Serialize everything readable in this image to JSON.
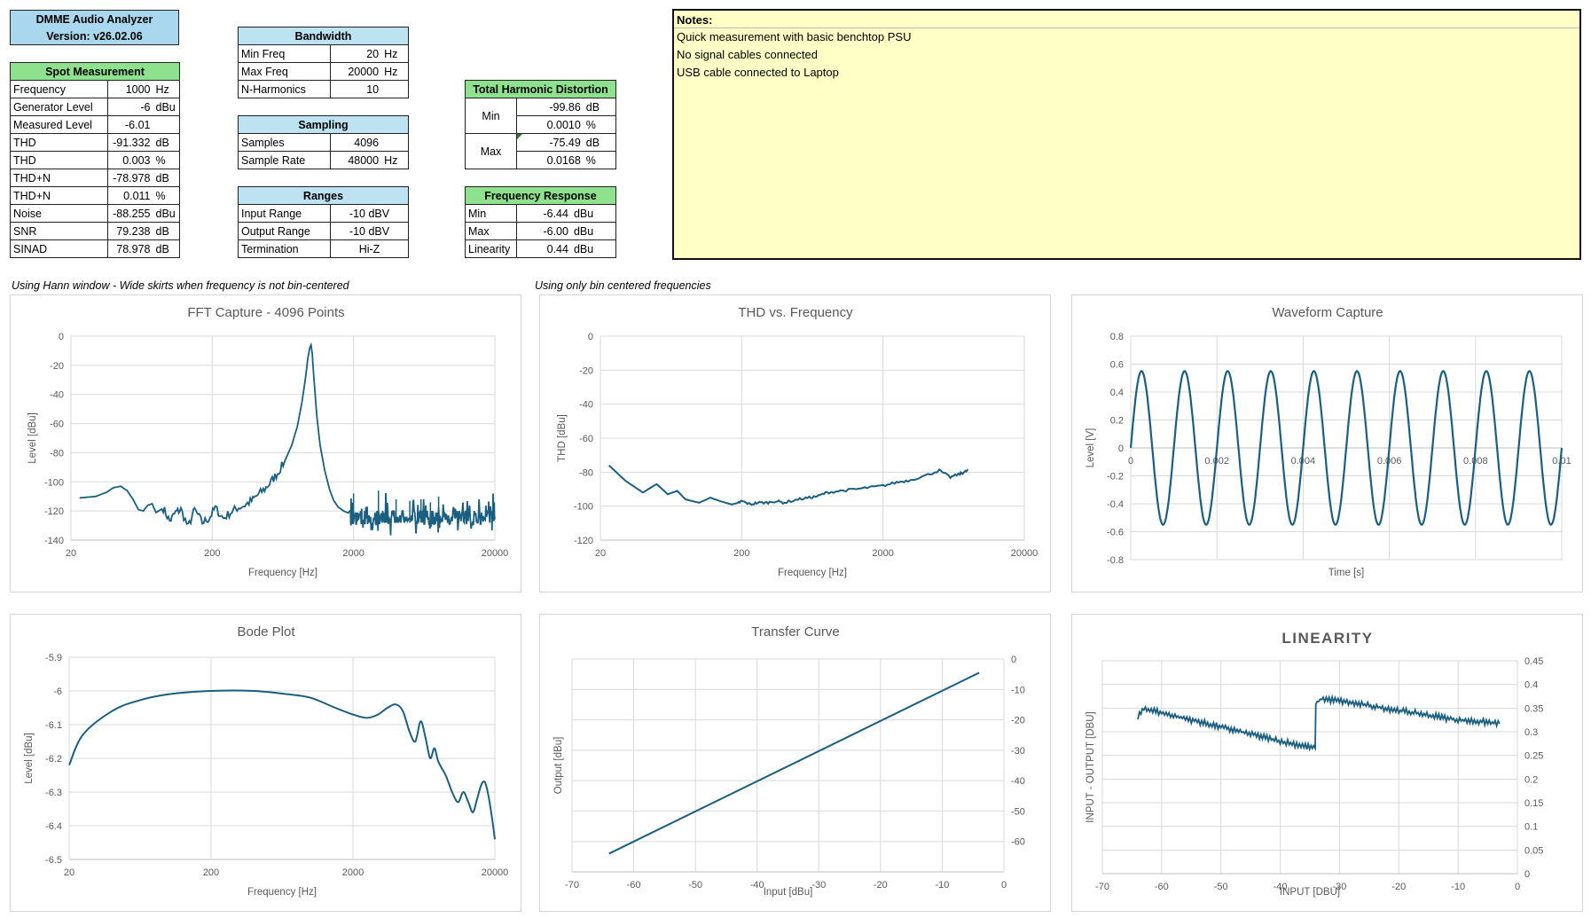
{
  "header": {
    "line1": "DMME Audio Analyzer",
    "line2": "Version: v26.02.06"
  },
  "spot": {
    "title": "Spot Measurement",
    "rows": [
      {
        "label": "Frequency",
        "value": "1000",
        "unit": "Hz"
      },
      {
        "label": "Generator Level",
        "value": "-6",
        "unit": "dBu"
      },
      {
        "label": "Measured Level",
        "value": "-6.01",
        "unit": ""
      },
      {
        "label": "THD",
        "value": "-91.332",
        "unit": "dB"
      },
      {
        "label": "THD",
        "value": "0.003",
        "unit": "%"
      },
      {
        "label": "THD+N",
        "value": "-78.978",
        "unit": "dB"
      },
      {
        "label": "THD+N",
        "value": "0.011",
        "unit": "%"
      },
      {
        "label": "Noise",
        "value": "-88.255",
        "unit": "dBu"
      },
      {
        "label": "SNR",
        "value": "79.238",
        "unit": "dB"
      },
      {
        "label": "SINAD",
        "value": "78.978",
        "unit": "dB"
      }
    ]
  },
  "bandwidth": {
    "title": "Bandwidth",
    "rows": [
      {
        "label": "Min Freq",
        "value": "20",
        "unit": "Hz"
      },
      {
        "label": "Max Freq",
        "value": "20000",
        "unit": "Hz"
      },
      {
        "label": "N-Harmonics",
        "value": "10",
        "unit": ""
      }
    ]
  },
  "sampling": {
    "title": "Sampling",
    "rows": [
      {
        "label": "Samples",
        "value": "4096",
        "unit": ""
      },
      {
        "label": "Sample Rate",
        "value": "48000",
        "unit": "Hz"
      }
    ]
  },
  "ranges": {
    "title": "Ranges",
    "rows": [
      {
        "label": "Input Range",
        "value": "-10 dBV"
      },
      {
        "label": "Output Range",
        "value": "-10 dBV"
      },
      {
        "label": "Termination",
        "value": "Hi-Z"
      }
    ]
  },
  "thd_table": {
    "title": "Total Harmonic Distortion",
    "min_label": "Min",
    "max_label": "Max",
    "min_db": "-99.86",
    "min_db_unit": "dB",
    "min_pct": "0.0010",
    "min_pct_unit": "%",
    "max_db": "-75.49",
    "max_db_unit": "dB",
    "max_pct": "0.0168",
    "max_pct_unit": "%"
  },
  "freq_resp": {
    "title": "Frequency Response",
    "rows": [
      {
        "label": "Min",
        "value": "-6.44",
        "unit": "dBu"
      },
      {
        "label": "Max",
        "value": "-6.00",
        "unit": "dBu"
      },
      {
        "label": "Linearity",
        "value": "0.44",
        "unit": "dBu"
      }
    ]
  },
  "notes": {
    "title": "Notes:",
    "lines": [
      "Quick measurement with basic benchtop PSU",
      "No signal cables connected",
      "USB cable connected to Laptop"
    ]
  },
  "captions": {
    "left": "Using Hann window - Wide skirts when frequency is not bin-centered",
    "mid": "Using only bin centered frequencies"
  },
  "colors": {
    "line": "#1a5f80",
    "grid": "#d9d9d9",
    "axis": "#595959"
  },
  "chart_data": [
    {
      "id": "fft",
      "type": "line",
      "title": "FFT Capture - 4096 Points",
      "xlabel": "Frequency [Hz]",
      "ylabel": "Level [dBu]",
      "xscale": "log",
      "xlim": [
        20,
        20000
      ],
      "ylim": [
        -140,
        0
      ],
      "xticks": [
        "20",
        "200",
        "2000",
        "20000"
      ],
      "yticks": [
        "0",
        "-20",
        "-40",
        "-60",
        "-80",
        "-100",
        "-120",
        "-140"
      ],
      "series": [
        {
          "name": "FFT",
          "x": [
            23,
            30,
            36,
            40,
            45,
            50,
            55,
            60,
            65,
            70,
            75,
            80,
            90,
            100,
            110,
            120,
            135,
            150,
            170,
            190,
            210,
            240,
            270,
            300,
            340,
            380,
            420,
            470,
            520,
            580,
            650,
            730,
            800,
            860,
            910,
            950,
            980,
            1000,
            1020,
            1050,
            1100,
            1160,
            1250,
            1350,
            1450,
            1550,
            1700,
            1900,
            2000,
            2300,
            2600,
            3000,
            3500,
            4000,
            5000,
            6000,
            7000,
            8000,
            10000,
            12000,
            15000,
            18000,
            20000
          ],
          "y": [
            -111,
            -110,
            -107,
            -104,
            -103,
            -106,
            -112,
            -119,
            -120,
            -116,
            -115,
            -121,
            -118,
            -127,
            -121,
            -119,
            -131,
            -119,
            -128,
            -125,
            -118,
            -125,
            -121,
            -118,
            -116,
            -113,
            -109,
            -105,
            -100,
            -94,
            -86,
            -75,
            -62,
            -46,
            -30,
            -15,
            -8,
            -6,
            -12,
            -30,
            -55,
            -75,
            -92,
            -105,
            -113,
            -117,
            -120,
            -122,
            -108,
            -128,
            -123,
            -121,
            -124,
            -120,
            -126,
            -122,
            -125,
            -121,
            -127,
            -122,
            -125,
            -121,
            -124
          ]
        }
      ]
    },
    {
      "id": "thd",
      "type": "line",
      "title": "THD vs. Frequency",
      "xlabel": "Frequency [Hz]",
      "ylabel": "THD [dBu]",
      "xscale": "log",
      "xlim": [
        20,
        20000
      ],
      "ylim": [
        -120,
        0
      ],
      "xticks": [
        "20",
        "200",
        "2000",
        "20000"
      ],
      "yticks": [
        "0",
        "-20",
        "-40",
        "-60",
        "-80",
        "-100",
        "-120"
      ],
      "series": [
        {
          "name": "THD",
          "x": [
            23,
            30,
            40,
            50,
            60,
            70,
            80,
            100,
            120,
            140,
            170,
            190,
            200,
            230,
            260,
            300,
            350,
            400,
            500,
            600,
            700,
            800,
            1000,
            1300,
            1600,
            2000,
            2500,
            3000,
            4000,
            5000,
            6000,
            7000,
            7500,
            8000
          ],
          "y": [
            -76,
            -85,
            -92,
            -87,
            -93,
            -91,
            -96,
            -98,
            -95,
            -97,
            -99,
            -98,
            -97,
            -99,
            -98,
            -98,
            -97,
            -98,
            -96,
            -95,
            -94,
            -92,
            -91,
            -90,
            -89,
            -88,
            -86,
            -85,
            -82,
            -79,
            -83,
            -81,
            -80,
            -79
          ]
        }
      ]
    },
    {
      "id": "wave",
      "type": "line",
      "title": "Waveform Capture",
      "xlabel": "Time [s]",
      "ylabel": "Level [V]",
      "xlim": [
        0,
        0.01
      ],
      "ylim": [
        -0.8,
        0.8
      ],
      "xticks": [
        "0",
        "0.002",
        "0.004",
        "0.006",
        "0.008",
        "0.01"
      ],
      "yticks": [
        "0.8",
        "0.6",
        "0.4",
        "0.2",
        "0",
        "-0.2",
        "-0.4",
        "-0.6",
        "-0.8"
      ],
      "series": [
        {
          "name": "sine",
          "amplitude": 0.55,
          "frequency_hz": 1000
        }
      ]
    },
    {
      "id": "bode",
      "type": "line",
      "title": "Bode Plot",
      "xlabel": "Frequency [Hz]",
      "ylabel": "Level [dBu]",
      "xscale": "log",
      "xlim": [
        20,
        20000
      ],
      "ylim": [
        -6.5,
        -5.9
      ],
      "xticks": [
        "20",
        "200",
        "2000",
        "20000"
      ],
      "yticks": [
        "-5.9",
        "-6",
        "-6.1",
        "-6.2",
        "-6.3",
        "-6.4",
        "-6.5"
      ],
      "series": [
        {
          "name": "Level",
          "x": [
            20,
            25,
            40,
            60,
            100,
            200,
            400,
            700,
            1000,
            1500,
            2000,
            2500,
            3000,
            3500,
            4000,
            4500,
            5000,
            5500,
            6000,
            6500,
            7000,
            7500,
            8000,
            9000,
            10000,
            11000,
            12000,
            13000,
            14000,
            15000,
            16000,
            17000,
            18000,
            19000,
            20000
          ],
          "y": [
            -6.22,
            -6.13,
            -6.06,
            -6.03,
            -6.01,
            -6.0,
            -6.0,
            -6.01,
            -6.02,
            -6.05,
            -6.07,
            -6.08,
            -6.07,
            -6.05,
            -6.04,
            -6.06,
            -6.12,
            -6.15,
            -6.09,
            -6.14,
            -6.2,
            -6.17,
            -6.21,
            -6.25,
            -6.3,
            -6.33,
            -6.3,
            -6.33,
            -6.36,
            -6.32,
            -6.28,
            -6.27,
            -6.31,
            -6.37,
            -6.44
          ]
        }
      ]
    },
    {
      "id": "transfer",
      "type": "line",
      "title": "Transfer Curve",
      "xlabel": "Input [dBu]",
      "ylabel": "Output [dBu]",
      "xlim": [
        -70,
        0
      ],
      "ylim": [
        -70,
        0
      ],
      "xticks": [
        "-70",
        "-60",
        "-50",
        "-40",
        "-30",
        "-20",
        "-10",
        "0"
      ],
      "yticks": [
        "0",
        "-10",
        "-20",
        "-30",
        "-40",
        "-50",
        "-60"
      ],
      "series": [
        {
          "name": "Output",
          "x": [
            -64,
            -4
          ],
          "y": [
            -64,
            -4.5
          ]
        }
      ]
    },
    {
      "id": "linearity",
      "type": "line",
      "title": "LINEARITY",
      "xlabel": "INPUT [DBU]",
      "ylabel": "INPUT - OUTPUT [DBU]",
      "xlim": [
        -70,
        0
      ],
      "ylim": [
        0,
        0.45
      ],
      "xticks": [
        "-70",
        "-60",
        "-50",
        "-40",
        "-30",
        "-20",
        "-10",
        "0"
      ],
      "yticks": [
        "0.45",
        "0.4",
        "0.35",
        "0.3",
        "0.25",
        "0.2",
        "0.15",
        "0.1",
        "0.05",
        "0"
      ],
      "series": [
        {
          "name": "Diff",
          "x": [
            -64,
            -63,
            -60,
            -55,
            -50,
            -45,
            -40,
            -36,
            -34.1,
            -34,
            -33,
            -30,
            -25,
            -20,
            -15,
            -10,
            -5,
            -3
          ],
          "y": [
            0.33,
            0.35,
            0.34,
            0.325,
            0.31,
            0.295,
            0.28,
            0.27,
            0.265,
            0.36,
            0.37,
            0.365,
            0.355,
            0.345,
            0.335,
            0.325,
            0.32,
            0.317
          ]
        }
      ]
    }
  ]
}
